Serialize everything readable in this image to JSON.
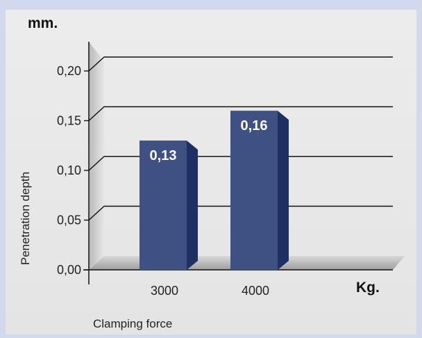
{
  "chart_data": {
    "type": "bar",
    "title": "",
    "y_unit": "mm.",
    "x_unit": "Kg.",
    "xlabel": "Clamping force",
    "ylabel": "Penetration depth",
    "categories": [
      "3000",
      "4000"
    ],
    "values": [
      0.13,
      0.16
    ],
    "data_labels": [
      "0,13",
      "0,16"
    ],
    "ylim": [
      0,
      0.2
    ],
    "yticks": [
      0,
      0.05,
      0.1,
      0.15,
      0.2
    ],
    "ytick_labels": [
      "0,00",
      "0,05",
      "0,10",
      "0,15",
      "0,20"
    ],
    "grid": true,
    "legend": "none",
    "colors": {
      "bar_front": "#3f5183",
      "bar_side": "#1e2f63",
      "bar_top": "#5467a0",
      "background": "#e8e8e8",
      "frame": "#d3d9ec"
    }
  }
}
